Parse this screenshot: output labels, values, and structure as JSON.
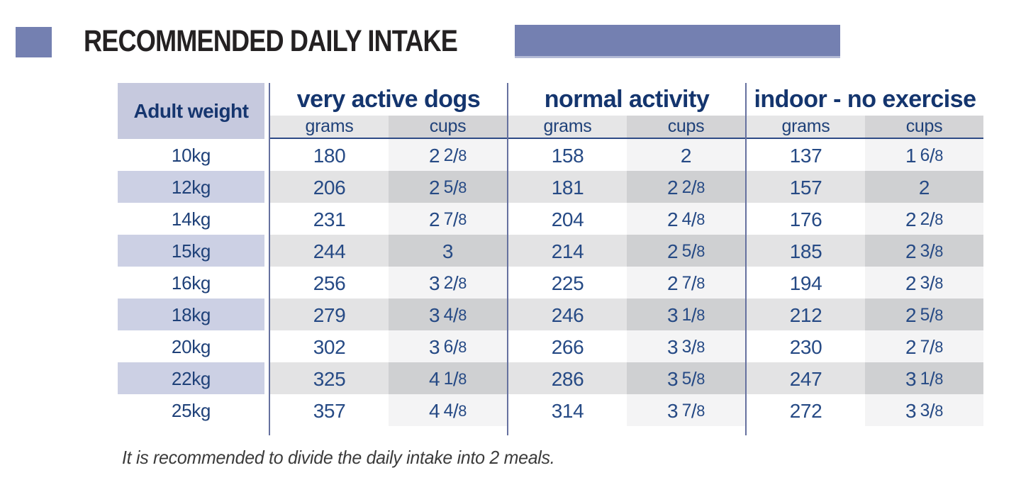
{
  "colors": {
    "accent_purple": "#7480B1",
    "navy_text": "#1C3C7C",
    "weight_header_fill": "#C6C9DE",
    "row_purple": "#CCD0E4",
    "grams_row_gray": "#E3E3E4",
    "cups_row_light": "#F4F4F5",
    "cups_row_dark": "#CFD0D2"
  },
  "title": "RECOMMENDED DAILY INTAKE",
  "table": {
    "weight_header": "Adult weight",
    "groups": [
      {
        "label": "very active dogs",
        "subheaders": [
          "grams",
          "cups"
        ]
      },
      {
        "label": "normal activity",
        "subheaders": [
          "grams",
          "cups"
        ]
      },
      {
        "label": "indoor - no exercise",
        "subheaders": [
          "grams",
          "cups"
        ]
      }
    ],
    "rows": [
      {
        "weight": "10kg",
        "cells": [
          {
            "grams": "180",
            "cups": "2 2/8"
          },
          {
            "grams": "158",
            "cups": "2"
          },
          {
            "grams": "137",
            "cups": "1 6/8"
          }
        ]
      },
      {
        "weight": "12kg",
        "cells": [
          {
            "grams": "206",
            "cups": "2 5/8"
          },
          {
            "grams": "181",
            "cups": "2 2/8"
          },
          {
            "grams": "157",
            "cups": "2"
          }
        ]
      },
      {
        "weight": "14kg",
        "cells": [
          {
            "grams": "231",
            "cups": "2 7/8"
          },
          {
            "grams": "204",
            "cups": "2 4/8"
          },
          {
            "grams": "176",
            "cups": "2 2/8"
          }
        ]
      },
      {
        "weight": "15kg",
        "cells": [
          {
            "grams": "244",
            "cups": "3"
          },
          {
            "grams": "214",
            "cups": "2 5/8"
          },
          {
            "grams": "185",
            "cups": "2 3/8"
          }
        ]
      },
      {
        "weight": "16kg",
        "cells": [
          {
            "grams": "256",
            "cups": "3 2/8"
          },
          {
            "grams": "225",
            "cups": "2 7/8"
          },
          {
            "grams": "194",
            "cups": "2 3/8"
          }
        ]
      },
      {
        "weight": "18kg",
        "cells": [
          {
            "grams": "279",
            "cups": "3 4/8"
          },
          {
            "grams": "246",
            "cups": "3 1/8"
          },
          {
            "grams": "212",
            "cups": "2 5/8"
          }
        ]
      },
      {
        "weight": "20kg",
        "cells": [
          {
            "grams": "302",
            "cups": "3 6/8"
          },
          {
            "grams": "266",
            "cups": "3 3/8"
          },
          {
            "grams": "230",
            "cups": "2 7/8"
          }
        ]
      },
      {
        "weight": "22kg",
        "cells": [
          {
            "grams": "325",
            "cups": "4 1/8"
          },
          {
            "grams": "286",
            "cups": "3 5/8"
          },
          {
            "grams": "247",
            "cups": "3 1/8"
          }
        ]
      },
      {
        "weight": "25kg",
        "cells": [
          {
            "grams": "357",
            "cups": "4 4/8"
          },
          {
            "grams": "314",
            "cups": "3 7/8"
          },
          {
            "grams": "272",
            "cups": "3 3/8"
          }
        ]
      }
    ]
  },
  "note": "It is recommended to divide the daily intake into 2 meals."
}
